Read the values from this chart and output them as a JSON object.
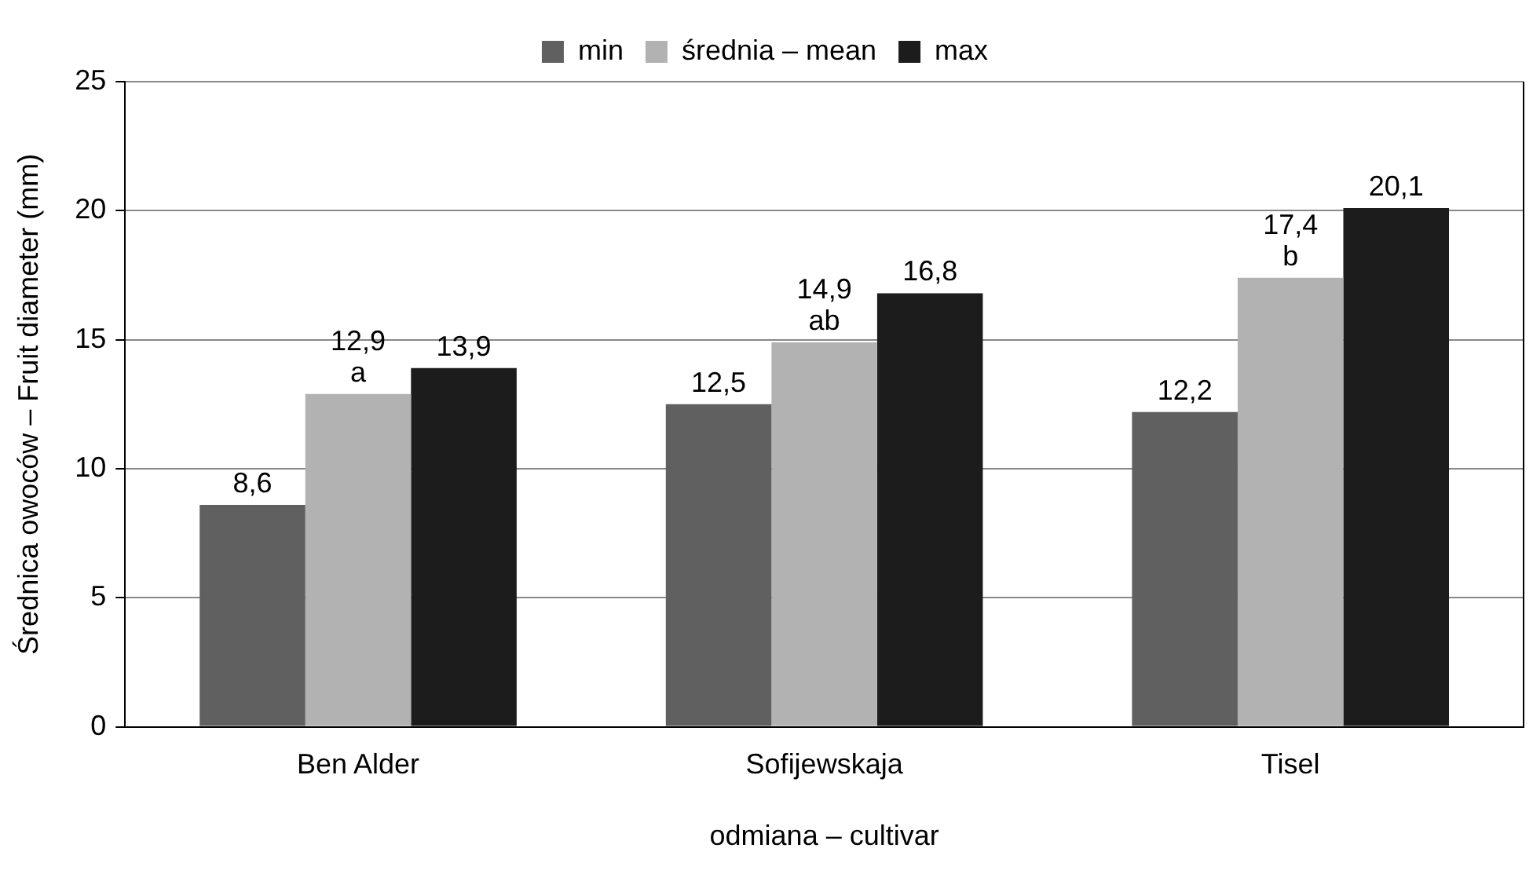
{
  "chart_data": {
    "type": "bar",
    "xlabel": "odmiana – cultivar",
    "ylabel": "Średnica owoców – Fruit diameter (mm)",
    "categories": [
      "Ben Alder",
      "Sofijewskaja",
      "Tisel"
    ],
    "series": [
      {
        "name": "min",
        "color": "#606060",
        "values": [
          8.6,
          12.5,
          12.2
        ],
        "value_labels": [
          "8,6",
          "12,5",
          "12,2"
        ]
      },
      {
        "name": "średnia – mean",
        "color": "#b2b2b2",
        "values": [
          12.9,
          14.9,
          17.4
        ],
        "value_labels": [
          "12,9",
          "14,9",
          "17,4"
        ]
      },
      {
        "name": "max",
        "color": "#1c1c1c",
        "values": [
          13.9,
          16.8,
          20.1
        ],
        "value_labels": [
          "13,9",
          "16,8",
          "20,1"
        ]
      }
    ],
    "annotations": [
      {
        "text": "a",
        "x": "Ben Alder",
        "y": 12.9
      },
      {
        "text": "ab",
        "x": "Sofijewskaja",
        "y": 14.9
      },
      {
        "text": "b",
        "x": "Tisel",
        "y": 17.4
      }
    ],
    "ylim": [
      0,
      25
    ],
    "yticks": [
      0,
      5,
      10,
      15,
      20,
      25
    ],
    "grid": "y",
    "legend": "top"
  }
}
